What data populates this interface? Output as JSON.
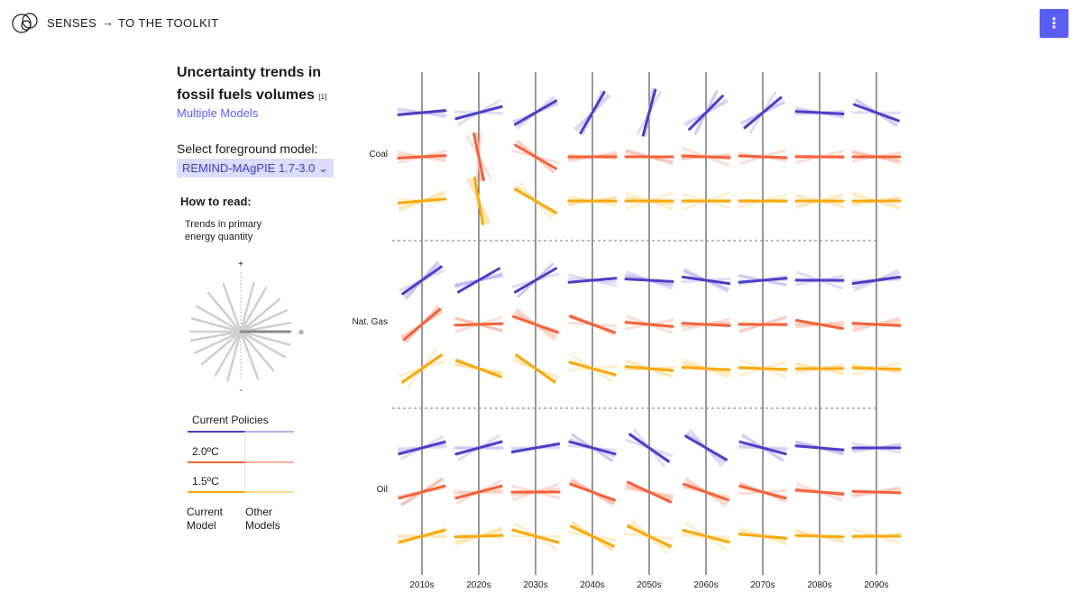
{
  "header": {
    "brand": "SENSES",
    "arrow": "→",
    "toolkit_link": "TO THE TOOLKIT",
    "menu_icon": "⋮"
  },
  "sidebar": {
    "title": "Uncertainty trends in fossil fuels volumes",
    "footnote": "[1]",
    "subtitle_link": "Multiple Models",
    "select_label": "Select foreground model:",
    "selected_model": "REMIND-MAgPIE 1.7-3.0 ⌄",
    "how_to_read": "How to read:",
    "trend_label": "Trends in primary energy quantity",
    "plus": "+",
    "minus": "-",
    "equal": "=",
    "legend": {
      "current_policies": "Current Policies",
      "two_deg": "2.0ºC",
      "one_five_deg": "1.5ºC",
      "current_model": "Current Model",
      "other_models": "Other Models"
    }
  },
  "colors": {
    "accent": "#5b5ef2",
    "current_policies": "#4b3fc4",
    "two_deg": "#f2623a",
    "one_five_deg": "#f7a90c"
  },
  "chart_data": {
    "type": "line",
    "description_units": "slope angle in degrees of trend per decade (positive = increasing)",
    "categories": [
      "2010s",
      "2020s",
      "2030s",
      "2040s",
      "2050s",
      "2060s",
      "2070s",
      "2080s",
      "2090s"
    ],
    "groups": [
      {
        "name": "Coal",
        "series": [
          {
            "name": "Current Policies",
            "values": [
              5,
              15,
              30,
              60,
              75,
              45,
              40,
              -3,
              -20
            ]
          },
          {
            "name": "2.0ºC",
            "values": [
              3,
              -78,
              -30,
              0,
              0,
              -2,
              -2,
              0,
              0
            ]
          },
          {
            "name": "1.5ºC",
            "values": [
              5,
              -80,
              -30,
              0,
              0,
              0,
              0,
              0,
              0
            ]
          }
        ]
      },
      {
        "name": "Nat. Gas",
        "series": [
          {
            "name": "Current Policies",
            "values": [
              35,
              30,
              30,
              5,
              -3,
              -8,
              5,
              0,
              8
            ]
          },
          {
            "name": "2.0ºC",
            "values": [
              40,
              2,
              -20,
              -20,
              -5,
              -3,
              0,
              -10,
              -3
            ]
          },
          {
            "name": "1.5ºC",
            "values": [
              35,
              -20,
              -35,
              -15,
              -5,
              -3,
              -2,
              0,
              -2
            ]
          }
        ]
      },
      {
        "name": "Oil",
        "series": [
          {
            "name": "Current Policies",
            "values": [
              15,
              15,
              10,
              -15,
              -35,
              -30,
              -15,
              -5,
              0
            ]
          },
          {
            "name": "2.0ºC",
            "values": [
              15,
              15,
              0,
              -20,
              -25,
              -20,
              -15,
              -5,
              -2
            ]
          },
          {
            "name": "1.5ºC",
            "values": [
              15,
              2,
              -15,
              -25,
              -25,
              -15,
              -5,
              -2,
              0
            ]
          }
        ]
      }
    ]
  }
}
